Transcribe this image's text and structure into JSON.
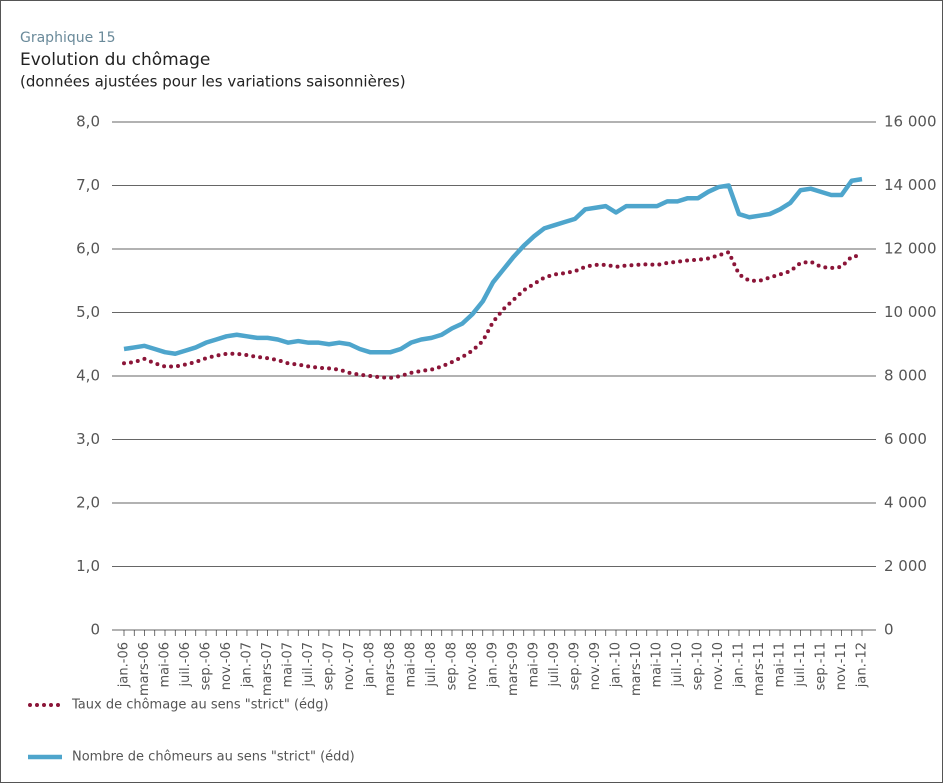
{
  "chart_data": {
    "type": "line",
    "supertitle": "Graphique 15",
    "title": "Evolution du chômage",
    "subtitle": "(données ajustées pour les variations saisonnières)",
    "categories": [
      "jan.-06",
      null,
      "mars-06",
      null,
      "mai-06",
      null,
      "juil.-06",
      null,
      "sep.-06",
      null,
      "nov.-06",
      null,
      "jan.-07",
      null,
      "mars-07",
      null,
      "mai-07",
      null,
      "juil.-07",
      null,
      "sep.-07",
      null,
      "nov.-07",
      null,
      "jan.-08",
      null,
      "mars-08",
      null,
      "mai-08",
      null,
      "juil.-08",
      null,
      "sep.-08",
      null,
      "nov.-08",
      null,
      "jan.-09",
      null,
      "mars-09",
      null,
      "mai-09",
      null,
      "juil.-09",
      null,
      "sep.-09",
      null,
      "nov.-09",
      null,
      "jan.-10",
      null,
      "mars-10",
      null,
      "mai-10",
      null,
      "juil.-10",
      null,
      "sep.-10",
      null,
      "nov.-10",
      null,
      "jan.-11",
      null,
      "mars-11",
      null,
      "mai-11",
      null,
      "juil.-11",
      null,
      "sep.-11",
      null,
      "nov.-11",
      null,
      "jan.-12"
    ],
    "series": [
      {
        "name": "Taux de chômage au sens \"strict\" (édg)",
        "color": "#8b1538",
        "style": "dotted",
        "values": [
          4.2,
          4.22,
          4.27,
          4.2,
          4.15,
          4.15,
          4.18,
          4.22,
          4.28,
          4.32,
          4.35,
          4.35,
          4.33,
          4.3,
          4.28,
          4.25,
          4.2,
          4.18,
          4.15,
          4.13,
          4.12,
          4.1,
          4.05,
          4.02,
          4.0,
          3.98,
          3.97,
          4.0,
          4.05,
          4.08,
          4.1,
          4.15,
          4.22,
          4.3,
          4.4,
          4.55,
          4.85,
          5.05,
          5.2,
          5.35,
          5.45,
          5.55,
          5.6,
          5.62,
          5.65,
          5.72,
          5.75,
          5.75,
          5.72,
          5.74,
          5.75,
          5.76,
          5.75,
          5.78,
          5.8,
          5.82,
          5.83,
          5.85,
          5.9,
          5.95,
          5.6,
          5.5,
          5.5,
          5.55,
          5.6,
          5.65,
          5.78,
          5.8,
          5.72,
          5.7,
          5.72,
          5.88,
          5.9
        ]
      },
      {
        "name": "Nombre de chômeurs au sens \"strict\" (édd)",
        "color": "#4ea5cc",
        "style": "solid",
        "axis": "y2",
        "values": [
          8850,
          8900,
          8950,
          8850,
          8750,
          8700,
          8800,
          8900,
          9050,
          9150,
          9250,
          9300,
          9250,
          9200,
          9200,
          9150,
          9050,
          9100,
          9050,
          9050,
          9000,
          9050,
          9000,
          8850,
          8750,
          8750,
          8750,
          8850,
          9050,
          9150,
          9200,
          9300,
          9500,
          9650,
          9950,
          10350,
          10950,
          11350,
          11750,
          12100,
          12400,
          12650,
          12750,
          12850,
          12950,
          13250,
          13300,
          13350,
          13150,
          13350,
          13350,
          13350,
          13350,
          13500,
          13500,
          13600,
          13600,
          13800,
          13950,
          14000,
          13100,
          13000,
          13050,
          13100,
          13250,
          13450,
          13850,
          13900,
          13800,
          13700,
          13700,
          14150,
          14200
        ]
      }
    ],
    "ylim": [
      0,
      8
    ],
    "yticks": [
      0,
      {
        "value": 1,
        "label": "1,0"
      },
      {
        "value": 2,
        "label": "2,0"
      },
      {
        "value": 3,
        "label": "3,0"
      },
      {
        "value": 4,
        "label": "4,0"
      },
      {
        "value": 5,
        "label": "5,0"
      },
      {
        "value": 6,
        "label": "6,0"
      },
      {
        "value": 7,
        "label": "7,0"
      },
      {
        "value": 8,
        "label": "8,0"
      }
    ],
    "y2lim": [
      0,
      16000
    ],
    "y2ticks": [
      0,
      {
        "value": 2000,
        "label": "2 000"
      },
      {
        "value": 4000,
        "label": "4 000"
      },
      {
        "value": 6000,
        "label": "6 000"
      },
      {
        "value": 8000,
        "label": "8 000"
      },
      {
        "value": 10000,
        "label": "10 000"
      },
      {
        "value": 12000,
        "label": "12 000"
      },
      {
        "value": 14000,
        "label": "14 000"
      },
      {
        "value": 16000,
        "label": "16 000"
      }
    ],
    "grid": true,
    "legend": "bottom-left"
  }
}
